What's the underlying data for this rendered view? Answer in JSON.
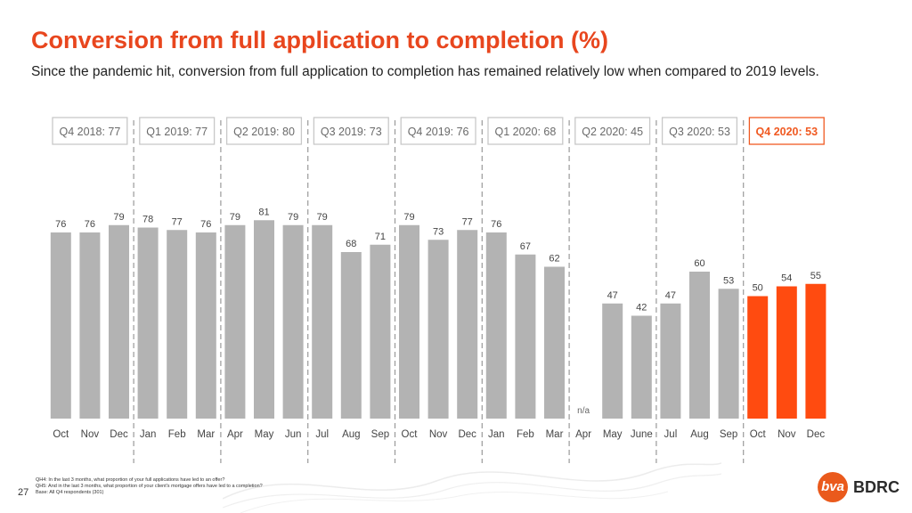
{
  "header": {
    "title": "Conversion from full application to completion (%)",
    "subtitle": "Since the pandemic hit, conversion from full application to completion has remained relatively low when compared to 2019 levels."
  },
  "colors": {
    "accent": "#e8461e",
    "bar_default": "#b3b3b3",
    "bar_highlight": "#ff4b10",
    "quarter_highlight": "#f05a22"
  },
  "quarters": [
    {
      "label": "Q4 2018: 77",
      "highlight": false
    },
    {
      "label": "Q1 2019: 77",
      "highlight": false
    },
    {
      "label": "Q2 2019: 80",
      "highlight": false
    },
    {
      "label": "Q3 2019: 73",
      "highlight": false
    },
    {
      "label": "Q4 2019: 76",
      "highlight": false
    },
    {
      "label": "Q1 2020: 68",
      "highlight": false
    },
    {
      "label": "Q2 2020: 45",
      "highlight": false
    },
    {
      "label": "Q3 2020: 53",
      "highlight": false
    },
    {
      "label": "Q4 2020: 53",
      "highlight": true
    }
  ],
  "chart_data": {
    "type": "bar",
    "categories": [
      "Oct",
      "Nov",
      "Dec",
      "Jan",
      "Feb",
      "Mar",
      "Apr",
      "May",
      "Jun",
      "Jul",
      "Aug",
      "Sep",
      "Oct",
      "Nov",
      "Dec",
      "Jan",
      "Feb",
      "Mar",
      "Apr",
      "May",
      "June",
      "Jul",
      "Aug",
      "Sep",
      "Oct",
      "Nov",
      "Dec"
    ],
    "values": [
      76,
      76,
      79,
      78,
      77,
      76,
      79,
      81,
      79,
      79,
      68,
      71,
      79,
      73,
      77,
      76,
      67,
      62,
      null,
      47,
      42,
      47,
      60,
      53,
      50,
      54,
      55
    ],
    "missing_label": "n/a",
    "highlight_last": 3,
    "ylim": [
      0,
      100
    ]
  },
  "footer": {
    "notes": [
      "QH4: In the last 3 months, what proportion of your full applications have led to an offer?",
      "QH5: And in the last 3 months, what proportion of your client's mortgage offers have led to a completion?",
      "Base: All Q4 respondents (301)"
    ],
    "page_number": "27",
    "logo_mark": "bva",
    "logo_text": "BDRC"
  }
}
